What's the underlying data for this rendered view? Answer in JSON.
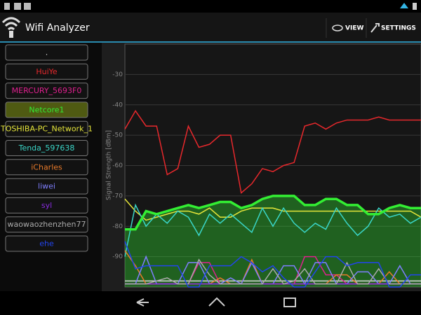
{
  "app_bar": {
    "title": "Wifi Analyzer",
    "actions": [
      "VIEW",
      "SETTINGS"
    ]
  },
  "chart_data": {
    "type": "line",
    "y_label": "Signal Strength [dBm]",
    "ylim": [
      -100,
      -20
    ],
    "yticks": [
      -30,
      -40,
      -50,
      -60,
      -70,
      -80,
      -90
    ],
    "grid": true,
    "series": [
      {
        "name": ".",
        "color": "#dddddd",
        "values": [
          -98,
          -98,
          -98,
          -98,
          -98,
          -98,
          -98,
          -98,
          -98,
          -98,
          -98,
          -98,
          -98,
          -98,
          -98,
          -98,
          -98,
          -98,
          -98,
          -98,
          -98,
          -98,
          -98,
          -98,
          -98,
          -98,
          -98,
          -98,
          -98
        ]
      },
      {
        "name": "HuiYe",
        "color": "#e8282c",
        "values": [
          -48,
          -42,
          -47,
          -47,
          -63,
          -61,
          -47,
          -54,
          -53,
          -50,
          -50,
          -69,
          -66,
          -61,
          -62,
          -60,
          -59,
          -47,
          -46,
          -48,
          -46,
          -45,
          -45,
          -45,
          -44,
          -45,
          -45,
          -45,
          -45
        ]
      },
      {
        "name": "MERCURY_5693F0",
        "color": "#e0208f",
        "values": [
          -99,
          -99,
          -99,
          -99,
          -99,
          -99,
          -99,
          -92,
          -92,
          -99,
          -99,
          -99,
          -99,
          -99,
          -99,
          -99,
          -99,
          -90,
          -90,
          -96,
          -96,
          -99,
          -99,
          -99,
          -99,
          -99,
          -99,
          -99,
          -99
        ]
      },
      {
        "name": "Netcore1",
        "color": "#33ee33",
        "filled": true,
        "values": [
          -81,
          -81,
          -75,
          -76,
          -75,
          -74,
          -73,
          -74,
          -73,
          -72,
          -72,
          -74,
          -73,
          -71,
          -70,
          -70,
          -70,
          -73,
          -73,
          -71,
          -71,
          -73,
          -73,
          -76,
          -76,
          -74,
          -73,
          -74,
          -74
        ]
      },
      {
        "name": "TOSHIBA-PC_Network_1",
        "color": "#e6e63a",
        "values": [
          -71,
          -75,
          -78,
          -77,
          -76,
          -75,
          -75,
          -76,
          -74,
          -77,
          -77,
          -75,
          -74,
          -74,
          -74,
          -75,
          -75,
          -75,
          -75,
          -75,
          -75,
          -75,
          -75,
          -75,
          -75,
          -75,
          -75,
          -75,
          -77
        ]
      },
      {
        "name": "Tenda_597638",
        "color": "#3ad6c8",
        "values": [
          -90,
          -73,
          -80,
          -76,
          -79,
          -75,
          -77,
          -83,
          -76,
          -79,
          -76,
          -79,
          -82,
          -74,
          -80,
          -74,
          -79,
          -82,
          -79,
          -81,
          -74,
          -79,
          -83,
          -80,
          -74,
          -77,
          -76,
          -79,
          -77
        ]
      },
      {
        "name": "iCharles",
        "color": "#e87a2a",
        "values": [
          -88,
          -93,
          -99,
          -99,
          -99,
          -99,
          -99,
          -99,
          -99,
          -97,
          -99,
          -99,
          -91,
          -99,
          -99,
          -99,
          -99,
          -99,
          -99,
          -99,
          -96,
          -96,
          -99,
          -99,
          -99,
          -95,
          -99,
          -99,
          -99
        ]
      },
      {
        "name": "liwei",
        "color": "#7f7fff",
        "values": [
          -99,
          -99,
          -90,
          -99,
          -99,
          -99,
          -92,
          -92,
          -99,
          -99,
          -97,
          -99,
          -92,
          -99,
          -99,
          -93,
          -93,
          -99,
          -92,
          -92,
          -99,
          -99,
          -95,
          -95,
          -99,
          -99,
          -93,
          -99,
          -99
        ]
      },
      {
        "name": "syl",
        "color": "#8a2be2",
        "values": [
          -99,
          -99,
          -99,
          -99,
          -99,
          -99,
          -99,
          -99,
          -99,
          -99,
          -99,
          -99,
          -99,
          -99,
          -99,
          -99,
          -99,
          -99,
          -99,
          -99,
          -99,
          -99,
          -99,
          -99,
          -99,
          -99,
          -99,
          -99,
          -99
        ]
      },
      {
        "name": "waowaozhenzhen77",
        "color": "#aaaaaa",
        "values": [
          -99,
          -99,
          -99,
          -98,
          -97,
          -99,
          -99,
          -91,
          -96,
          -99,
          -99,
          -99,
          -99,
          -99,
          -94,
          -99,
          -98,
          -94,
          -99,
          -99,
          -99,
          -92,
          -99,
          -99,
          -94,
          -99,
          -99,
          -99,
          -99
        ]
      },
      {
        "name": "ehe",
        "color": "#2244ee",
        "values": [
          -85,
          -94,
          -93,
          -93,
          -93,
          -93,
          -100,
          -100,
          -93,
          -93,
          -93,
          -90,
          -92,
          -95,
          -93,
          -97,
          -100,
          -100,
          -95,
          -90,
          -90,
          -93,
          -92,
          -92,
          -92,
          -100,
          -100,
          -96,
          -96
        ]
      }
    ]
  }
}
